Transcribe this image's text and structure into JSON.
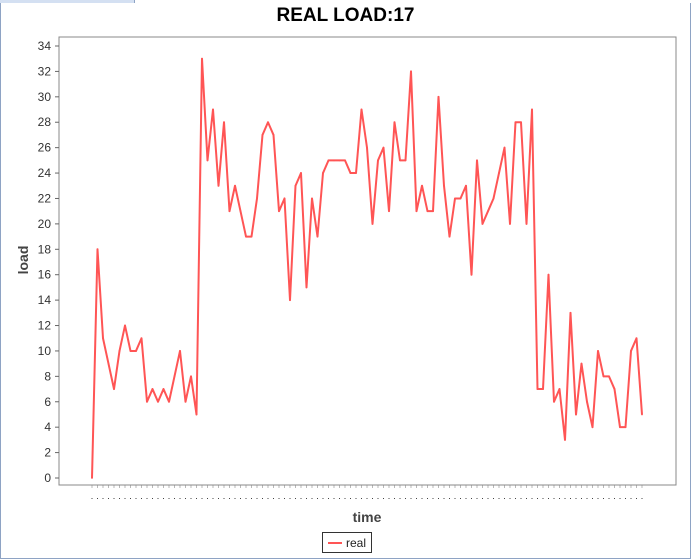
{
  "window": {
    "title": "REAL LOAD:17"
  },
  "legend": {
    "label": "real"
  },
  "chart_data": {
    "type": "line",
    "title": "REAL LOAD:17",
    "xlabel": "time",
    "ylabel": "load",
    "ylim": [
      0,
      34
    ],
    "yticks": [
      0,
      2,
      4,
      6,
      8,
      10,
      12,
      14,
      16,
      18,
      20,
      22,
      24,
      26,
      28,
      30,
      32,
      34
    ],
    "grid": false,
    "legend_position": "bottom-center",
    "series": [
      {
        "name": "real",
        "color": "#ff5555",
        "values": [
          0,
          18,
          11,
          9,
          7,
          10,
          12,
          10,
          10,
          11,
          6,
          7,
          6,
          7,
          6,
          8,
          10,
          6,
          8,
          5,
          33,
          25,
          29,
          23,
          28,
          21,
          23,
          21,
          19,
          19,
          22,
          27,
          28,
          27,
          21,
          22,
          14,
          23,
          24,
          15,
          22,
          19,
          24,
          25,
          25,
          25,
          25,
          24,
          24,
          29,
          26,
          20,
          25,
          26,
          21,
          28,
          25,
          25,
          32,
          21,
          23,
          21,
          21,
          30,
          23,
          19,
          22,
          22,
          23,
          16,
          25,
          20,
          21,
          22,
          24,
          26,
          20,
          28,
          28,
          20,
          29,
          7,
          7,
          16,
          6,
          7,
          3,
          13,
          5,
          9,
          6,
          4,
          10,
          8,
          8,
          7,
          4,
          4,
          10,
          11,
          5
        ]
      }
    ]
  }
}
